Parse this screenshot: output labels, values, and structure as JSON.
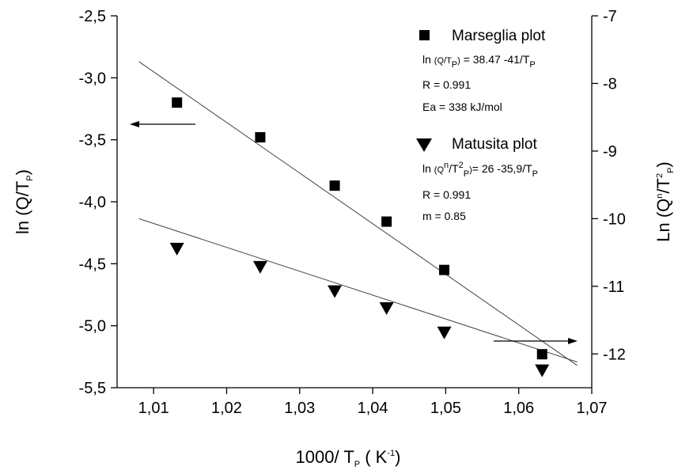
{
  "chart_data": {
    "type": "scatter",
    "x_axis": {
      "label_main": "1000/ T",
      "label_sub": "P",
      "label_unit_open": " ( K",
      "label_unit_sup": "-1",
      "label_unit_close": ")",
      "range": [
        1.005,
        1.07
      ],
      "ticks": [
        1.01,
        1.02,
        1.03,
        1.04,
        1.05,
        1.06,
        1.07
      ],
      "tick_labels": [
        "1,01",
        "1,02",
        "1,03",
        "1,04",
        "1,05",
        "1,06",
        "1,07"
      ]
    },
    "y_left": {
      "label_main": "ln (Q/T",
      "label_sub": "P",
      "label_close": ")",
      "range": [
        -5.5,
        -2.5
      ],
      "ticks": [
        -2.5,
        -3.0,
        -3.5,
        -4.0,
        -4.5,
        -5.0,
        -5.5
      ],
      "tick_labels": [
        "-2,5",
        "-3,0",
        "-3,5",
        "-4,0",
        "-4,5",
        "-5,0",
        "-5,5"
      ]
    },
    "y_right": {
      "label_main": "Ln (Q",
      "label_sup1": "n",
      "label_mid": "/T",
      "label_sup2": "2",
      "label_sub": "P",
      "label_close": ")",
      "range": [
        -12.5,
        -7
      ],
      "ticks": [
        -7,
        -8,
        -9,
        -10,
        -11,
        -12
      ],
      "tick_labels": [
        "-7",
        "-8",
        "-9",
        "-10",
        "-11",
        "-12"
      ]
    },
    "series": [
      {
        "name": "Marseglia plot",
        "marker": "square",
        "axis": "left",
        "x": [
          1.0132,
          1.0246,
          1.0348,
          1.0419,
          1.0498,
          1.0632
        ],
        "y": [
          -3.2,
          -3.48,
          -3.87,
          -4.16,
          -4.55,
          -5.23
        ],
        "fit": {
          "x": [
            1.008,
            1.068
          ],
          "y": [
            -2.87,
            -5.32
          ]
        },
        "equation": {
          "a": "ln ",
          "b": "(Q/T",
          "c": "P",
          "d": ")",
          "e": " = 38.47 -41/T",
          "f": "P"
        },
        "stats": [
          "R = 0.991",
          "Ea = 338 kJ/mol"
        ]
      },
      {
        "name": "Matusita plot",
        "marker": "triangle-down",
        "axis": "right",
        "x": [
          1.0132,
          1.0246,
          1.0348,
          1.0419,
          1.0498,
          1.0632
        ],
        "y": [
          -10.45,
          -10.72,
          -11.08,
          -11.33,
          -11.69,
          -12.25
        ],
        "fit": {
          "x": [
            1.008,
            1.068
          ],
          "y": [
            -10.0,
            -12.12
          ]
        },
        "equation": {
          "a": "ln ",
          "b": "(Q",
          "c": "n",
          "d": "/T",
          "e": "2",
          "f": "P",
          "g": ")",
          "h": "= 26 -35,9/T",
          "i": "P"
        },
        "stats": [
          "R = 0.991",
          "m = 0.85"
        ]
      }
    ],
    "annotations": [
      {
        "type": "arrow",
        "direction": "left",
        "points_to": "left axis"
      },
      {
        "type": "arrow",
        "direction": "right",
        "points_to": "right axis"
      }
    ],
    "grid": false,
    "legend_position": "top-right"
  }
}
